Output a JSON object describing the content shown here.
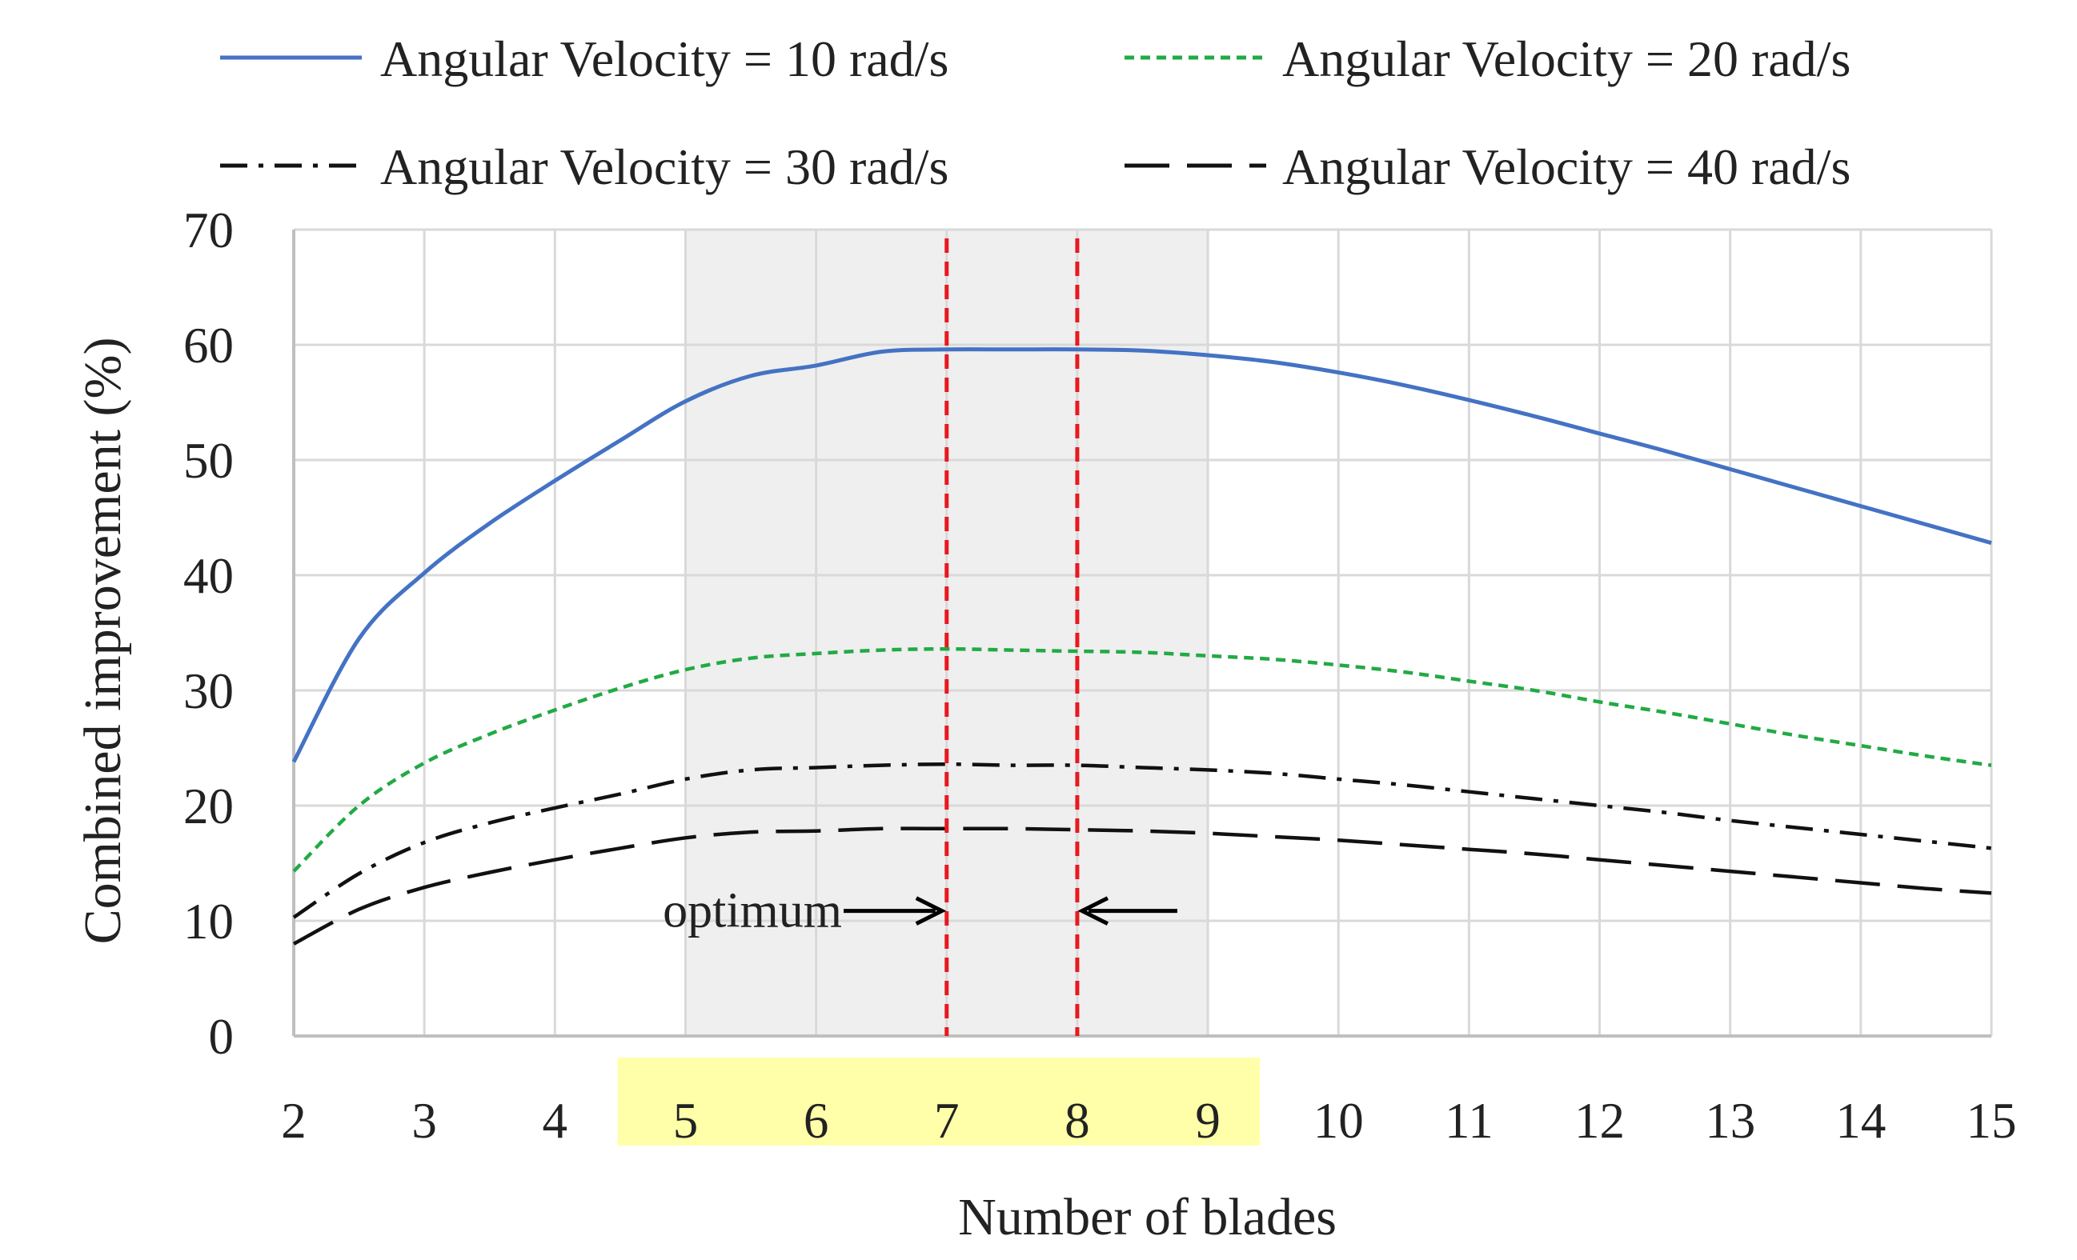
{
  "chart_data": {
    "type": "line",
    "xlabel": "Number of blades",
    "ylabel": "Combined improvement (%)",
    "xlim": [
      2,
      15
    ],
    "ylim": [
      0,
      70
    ],
    "x_ticks": [
      2,
      3,
      4,
      5,
      6,
      7,
      8,
      9,
      10,
      11,
      12,
      13,
      14,
      15
    ],
    "y_ticks": [
      0,
      10,
      20,
      30,
      40,
      50,
      60,
      70
    ],
    "grid": true,
    "legend_position": "top",
    "x": [
      2,
      2.5,
      3,
      3.5,
      4,
      4.5,
      5,
      5.5,
      6,
      6.5,
      7,
      7.5,
      8,
      8.5,
      9,
      9.5,
      10,
      10.5,
      11,
      11.5,
      12,
      12.5,
      13,
      13.5,
      14,
      14.5,
      15
    ],
    "series": [
      {
        "name": "Angular Velocity = 10 rad/s",
        "color": "#4472C4",
        "dash": "solid",
        "values": [
          23.8,
          34.5,
          40.2,
          44.5,
          48.2,
          51.7,
          55.1,
          57.3,
          58.2,
          59.4,
          59.6,
          59.6,
          59.6,
          59.5,
          59.1,
          58.5,
          57.6,
          56.5,
          55.2,
          53.8,
          52.3,
          50.8,
          49.2,
          47.6,
          46.0,
          44.4,
          42.8
        ]
      },
      {
        "name": "Angular Velocity = 20 rad/s",
        "color": "#22AA44",
        "dash": "short-dash",
        "values": [
          14.3,
          20.0,
          23.7,
          26.2,
          28.3,
          30.2,
          31.8,
          32.8,
          33.2,
          33.5,
          33.6,
          33.5,
          33.4,
          33.3,
          33.0,
          32.7,
          32.2,
          31.6,
          30.8,
          30.0,
          29.0,
          28.1,
          27.1,
          26.1,
          25.2,
          24.3,
          23.5
        ]
      },
      {
        "name": "Angular Velocity = 30 rad/s",
        "color": "#111111",
        "dash": "dash-dot",
        "values": [
          10.3,
          14.1,
          16.8,
          18.5,
          19.8,
          21.0,
          22.3,
          23.1,
          23.3,
          23.5,
          23.6,
          23.5,
          23.5,
          23.3,
          23.1,
          22.8,
          22.3,
          21.8,
          21.2,
          20.6,
          20.0,
          19.4,
          18.7,
          18.1,
          17.5,
          16.9,
          16.3
        ]
      },
      {
        "name": "Angular Velocity = 40 rad/s",
        "color": "#111111",
        "dash": "long-dash",
        "values": [
          8.0,
          11.0,
          12.9,
          14.2,
          15.3,
          16.3,
          17.2,
          17.7,
          17.8,
          18.0,
          18.0,
          18.0,
          17.9,
          17.8,
          17.6,
          17.3,
          17.0,
          16.6,
          16.2,
          15.8,
          15.3,
          14.8,
          14.3,
          13.8,
          13.3,
          12.8,
          12.4
        ]
      }
    ],
    "shaded_region": [
      5,
      9
    ],
    "highlighted_ticks": [
      5,
      6,
      7,
      8,
      9
    ],
    "optimum_lines": [
      7,
      8
    ],
    "annotation": {
      "text": "optimum",
      "y": 11
    }
  },
  "colors": {
    "shade": "#EFEFEF",
    "tick_highlight": "#FFFFAA",
    "optimum_line": "#E8191F",
    "grid": "#D9D9D9",
    "axis": "#BFBFBF"
  }
}
